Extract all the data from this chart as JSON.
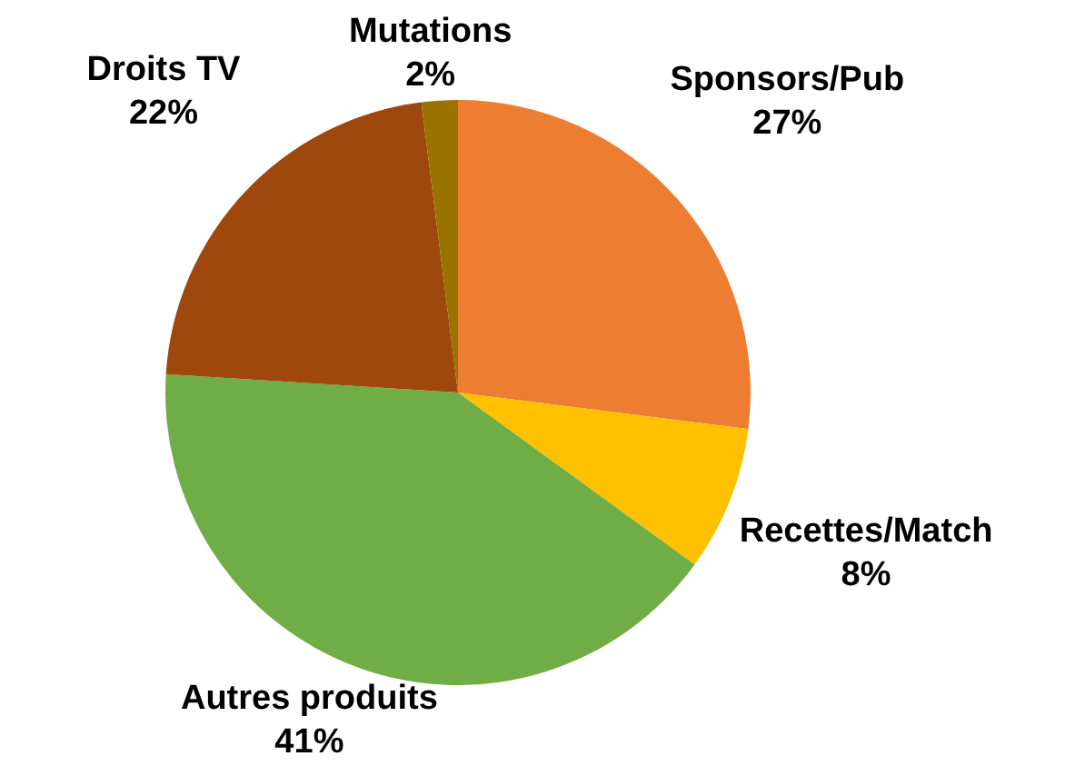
{
  "chart_data": {
    "type": "pie",
    "categories": [
      "Sponsors/Pub",
      "Recettes/Match",
      "Autres produits",
      "Droits TV",
      "Mutations"
    ],
    "values": [
      27,
      8,
      41,
      22,
      2
    ],
    "value_labels": [
      "27%",
      "8%",
      "41%",
      "22%",
      "2%"
    ],
    "colors": [
      "#ed7d31",
      "#ffc000",
      "#70ad47",
      "#9e480e",
      "#997300"
    ],
    "legend": false
  }
}
